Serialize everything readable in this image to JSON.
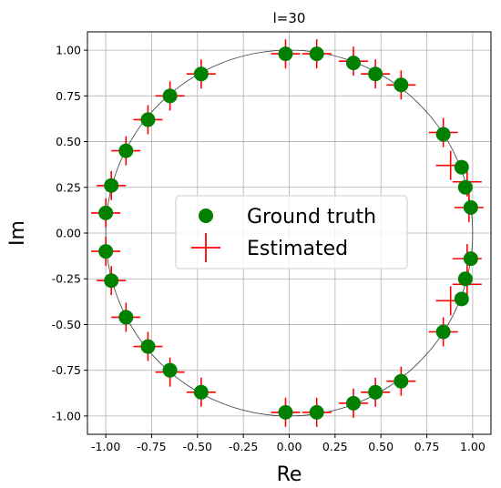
{
  "chart_data": {
    "type": "scatter",
    "title": "l=30",
    "xlabel": "Re",
    "ylabel": "Im",
    "xlim": [
      -1.1,
      1.1
    ],
    "ylim": [
      -1.1,
      1.1
    ],
    "grid": true,
    "legend_placement": "center",
    "x_ticks": [
      "-1.00",
      "-0.75",
      "-0.50",
      "-0.25",
      "0.00",
      "0.25",
      "0.50",
      "0.75",
      "1.00"
    ],
    "y_ticks": [
      "1.00",
      "0.75",
      "0.50",
      "0.25",
      "0.00",
      "-0.25",
      "-0.50",
      "-0.75",
      "-1.00"
    ],
    "reference_circle": {
      "radius": 1.0,
      "color": "#404040"
    },
    "series": [
      {
        "name": "Ground truth",
        "marker": "circle",
        "color": "#008000",
        "points": [
          [
            0.99,
            0.14
          ],
          [
            0.96,
            0.25
          ],
          [
            0.94,
            0.36
          ],
          [
            0.84,
            0.54
          ],
          [
            0.61,
            0.81
          ],
          [
            0.47,
            0.87
          ],
          [
            0.35,
            0.93
          ],
          [
            0.15,
            0.98
          ],
          [
            -0.02,
            0.98
          ],
          [
            -0.48,
            0.87
          ],
          [
            -0.65,
            0.75
          ],
          [
            -0.77,
            0.62
          ],
          [
            -0.89,
            0.45
          ],
          [
            -0.97,
            0.26
          ],
          [
            -1.0,
            0.11
          ],
          [
            -1.0,
            -0.1
          ],
          [
            -0.97,
            -0.26
          ],
          [
            -0.89,
            -0.46
          ],
          [
            -0.77,
            -0.62
          ],
          [
            -0.65,
            -0.75
          ],
          [
            -0.48,
            -0.87
          ],
          [
            -0.02,
            -0.98
          ],
          [
            0.15,
            -0.98
          ],
          [
            0.35,
            -0.93
          ],
          [
            0.47,
            -0.87
          ],
          [
            0.61,
            -0.81
          ],
          [
            0.84,
            -0.54
          ],
          [
            0.94,
            -0.36
          ],
          [
            0.96,
            -0.25
          ],
          [
            0.99,
            -0.14
          ]
        ]
      },
      {
        "name": "Estimated",
        "marker": "plus",
        "color": "#ff0000",
        "points": [
          [
            0.98,
            0.14
          ],
          [
            0.97,
            0.28
          ],
          [
            0.88,
            0.37
          ],
          [
            0.84,
            0.55
          ],
          [
            0.61,
            0.81
          ],
          [
            0.47,
            0.87
          ],
          [
            0.35,
            0.94
          ],
          [
            0.15,
            0.98
          ],
          [
            -0.02,
            0.98
          ],
          [
            -0.48,
            0.87
          ],
          [
            -0.65,
            0.75
          ],
          [
            -0.77,
            0.62
          ],
          [
            -0.89,
            0.45
          ],
          [
            -0.97,
            0.26
          ],
          [
            -1.0,
            0.11
          ],
          [
            -1.0,
            -0.1
          ],
          [
            -0.97,
            -0.26
          ],
          [
            -0.89,
            -0.46
          ],
          [
            -0.77,
            -0.62
          ],
          [
            -0.65,
            -0.76
          ],
          [
            -0.48,
            -0.87
          ],
          [
            -0.02,
            -0.98
          ],
          [
            0.15,
            -0.98
          ],
          [
            0.35,
            -0.93
          ],
          [
            0.47,
            -0.87
          ],
          [
            0.61,
            -0.81
          ],
          [
            0.84,
            -0.54
          ],
          [
            0.88,
            -0.37
          ],
          [
            0.97,
            -0.28
          ],
          [
            0.97,
            -0.14
          ]
        ]
      }
    ]
  }
}
